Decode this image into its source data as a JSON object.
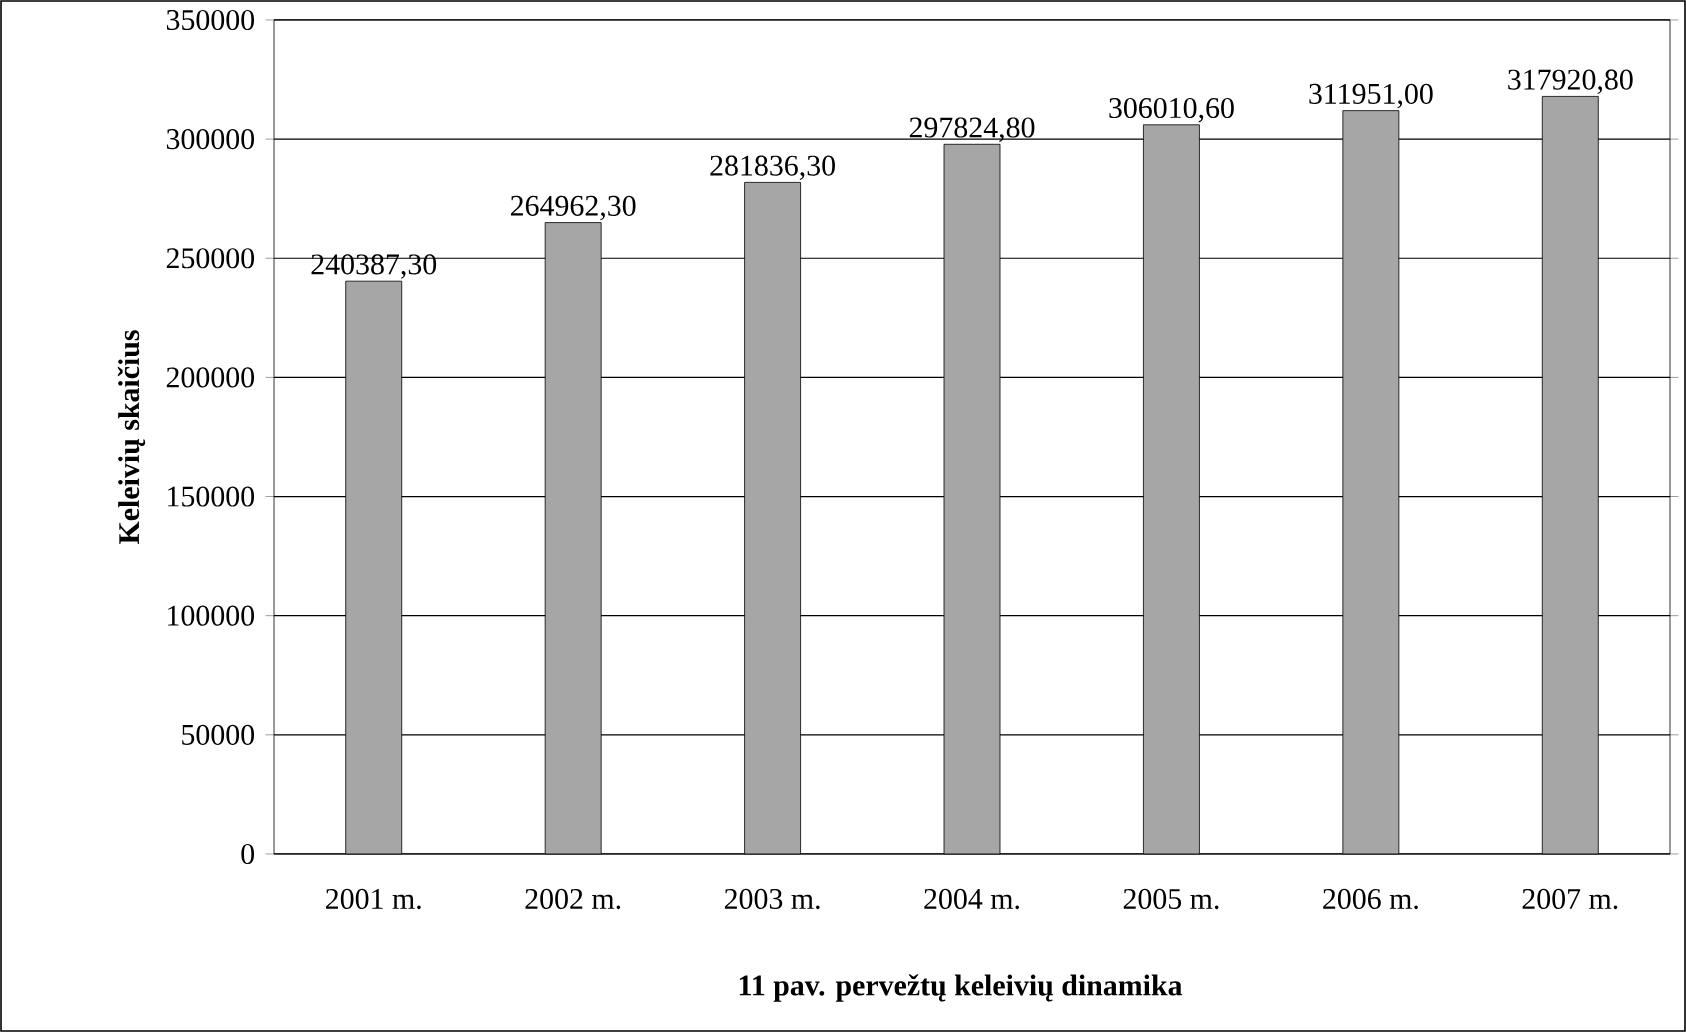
{
  "chart_data": {
    "type": "bar",
    "title": "11 pav. pervežtų keleivių dinamika",
    "ylabel": "Keleivių skaičius",
    "categories": [
      "2001 m.",
      "2002 m.",
      "2003 m.",
      "2004 m.",
      "2005 m.",
      "2006 m.",
      "2007 m."
    ],
    "values": [
      240387.3,
      264962.3,
      281836.3,
      297824.8,
      306010.6,
      311951.0,
      317920.8
    ],
    "value_labels": [
      "240387,30",
      "264962,30",
      "281836,30",
      "297824,80",
      "306010,60",
      "311951,00",
      "317920,80"
    ],
    "color": "#a6a6a6",
    "ylim": [
      0,
      350000
    ],
    "yticks": [
      0,
      50000,
      100000,
      150000,
      200000,
      250000,
      300000,
      350000
    ],
    "grid": "y"
  }
}
